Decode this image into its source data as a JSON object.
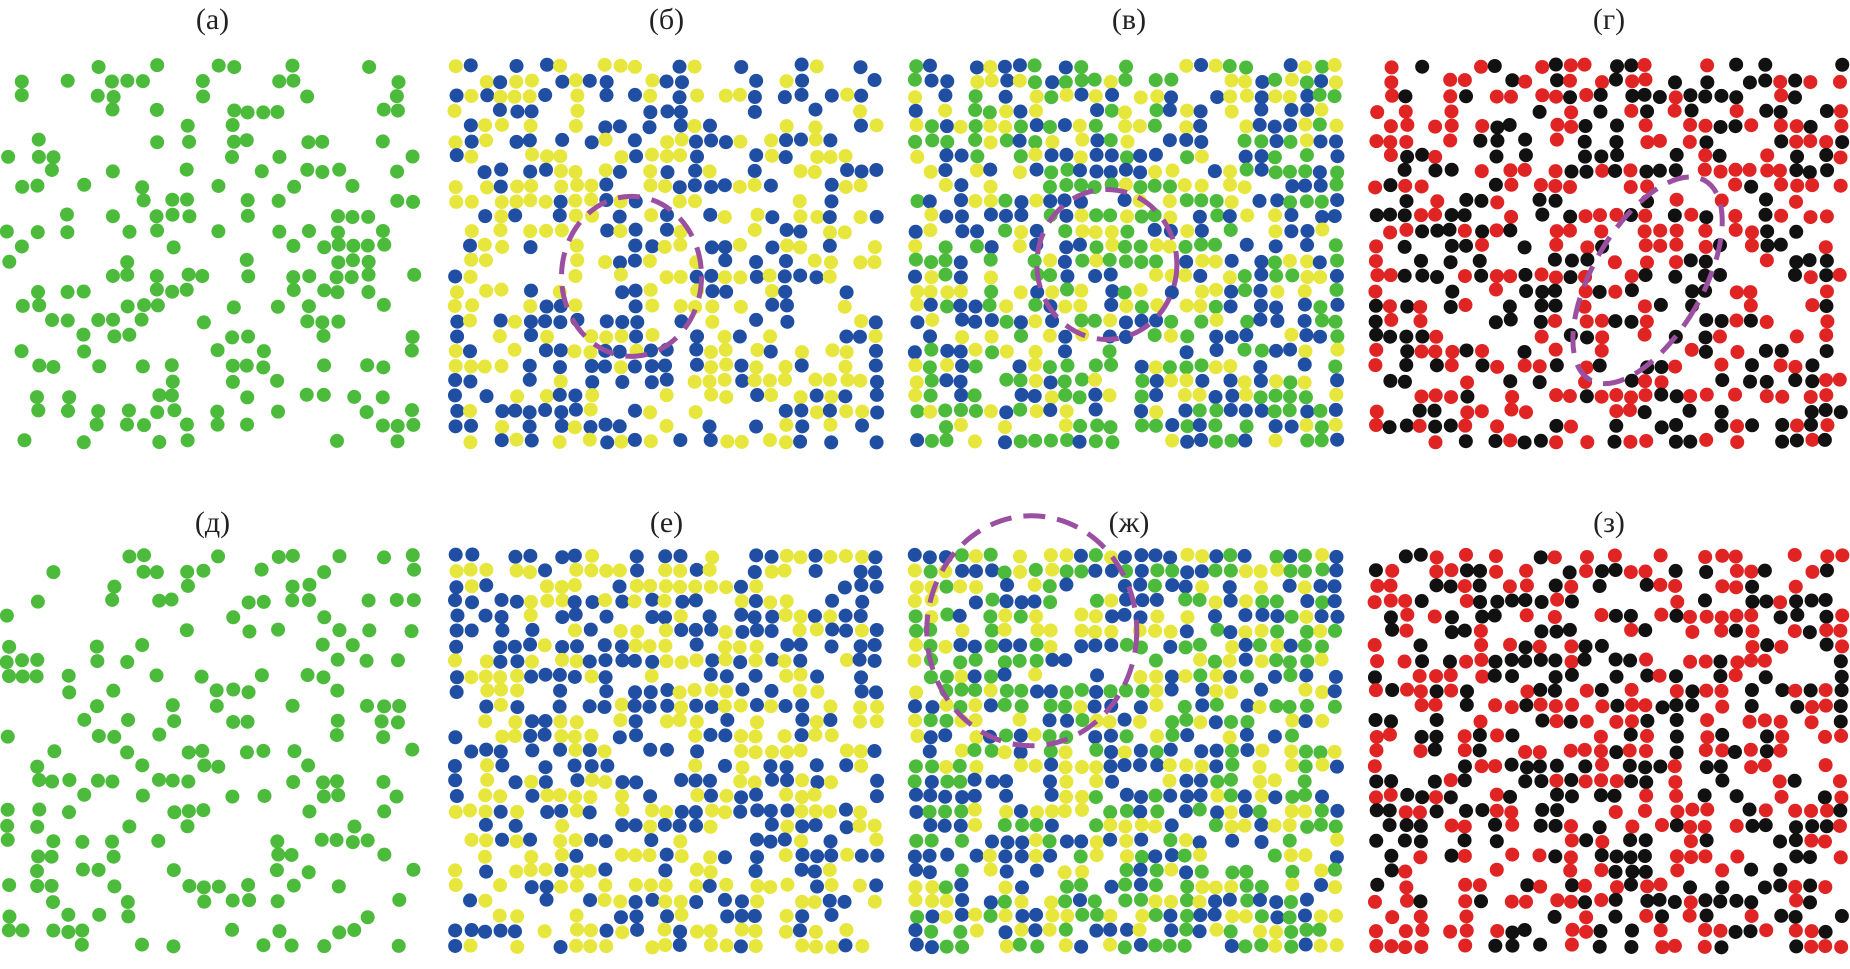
{
  "panels": [
    {
      "label": "(а)"
    },
    {
      "label": "(б)"
    },
    {
      "label": "(в)"
    },
    {
      "label": "(г)"
    },
    {
      "label": "(д)"
    },
    {
      "label": "(е)"
    },
    {
      "label": "(ж)"
    },
    {
      "label": "(з)"
    }
  ]
}
